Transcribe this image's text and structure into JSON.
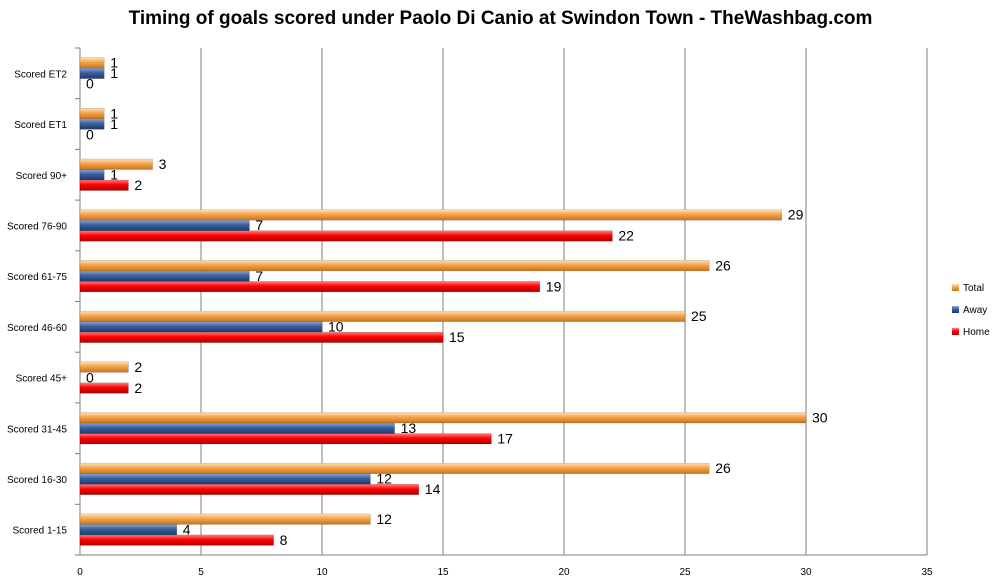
{
  "chart_data": {
    "type": "bar",
    "orientation": "horizontal",
    "title": "Timing of goals scored under Paolo Di Canio at Swindon Town - TheWashbag.com",
    "categories": [
      "Scored 1-15",
      "Scored 16-30",
      "Scored 31-45",
      "Scored 45+",
      "Scored 46-60",
      "Scored 61-75",
      "Scored 76-90",
      "Scored 90+",
      "Scored ET1",
      "Scored ET2"
    ],
    "series": [
      {
        "name": "Home",
        "color": "#ff0000",
        "values": [
          8,
          14,
          17,
          2,
          15,
          19,
          22,
          2,
          0,
          0
        ]
      },
      {
        "name": "Away",
        "color": "#3a5f9f",
        "values": [
          4,
          12,
          13,
          0,
          10,
          7,
          7,
          1,
          1,
          1
        ]
      },
      {
        "name": "Total",
        "color": "#f5a24a",
        "values": [
          12,
          26,
          30,
          2,
          25,
          26,
          29,
          3,
          1,
          1
        ]
      }
    ],
    "xlim": [
      0,
      35
    ],
    "xticks": [
      0,
      5,
      10,
      15,
      20,
      25,
      30,
      35
    ],
    "grid": true,
    "legend_position": "right"
  }
}
